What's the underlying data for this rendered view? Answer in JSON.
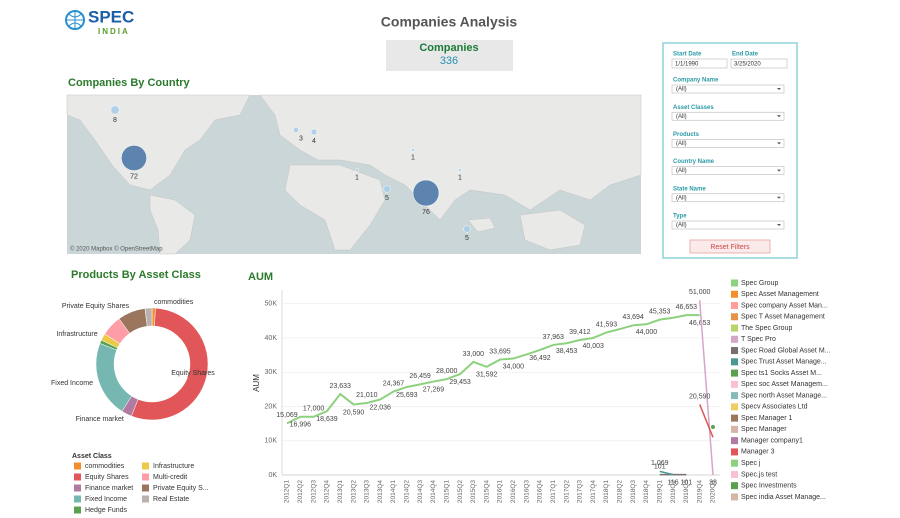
{
  "header": {
    "logo": "SPEC",
    "logo_sub": "INDIA",
    "title": "Companies Analysis",
    "kpi_label": "Companies",
    "kpi_value": 336
  },
  "filters": {
    "start_label": "Start Date",
    "start": "1/1/1990",
    "end_label": "End Date",
    "end": "3/25/2020",
    "dropdowns": [
      {
        "label": "Company Name",
        "value": "(All)"
      },
      {
        "label": "Asset Classes",
        "value": "(All)"
      },
      {
        "label": "Products",
        "value": "(All)"
      },
      {
        "label": "Country Name",
        "value": "(All)"
      },
      {
        "label": "State Name",
        "value": "(All)"
      },
      {
        "label": "Type",
        "value": "(All)"
      }
    ],
    "button": "Reset Filters"
  },
  "chart_data": [
    {
      "type": "map",
      "title": "Companies By Country",
      "values": [
        8,
        72,
        3,
        4,
        1,
        1,
        5,
        76,
        1,
        5
      ],
      "color": "#4e79a7",
      "attribution": "© 2020 Mapbox © OpenStreetMap"
    },
    {
      "type": "pie",
      "title": "Products By Asset Class",
      "legend_title": "Asset Class",
      "categories": [
        "commodities",
        "Equity Shares",
        "Finance market",
        "Fixed Income",
        "Hedge Funds",
        "Infrastructure",
        "Multi-credit",
        "Private Equity S...",
        "Real Estate"
      ],
      "values": [
        1,
        55,
        3,
        22,
        1,
        2,
        6,
        8,
        2
      ],
      "colors": [
        "#f28e2b",
        "#e15759",
        "#b07aa1",
        "#76b7b2",
        "#59a14f",
        "#edc948",
        "#ff9da7",
        "#9c755f",
        "#bab0ac"
      ],
      "slice_labels": [
        "commodities",
        "Equity Shares",
        "Finance market",
        "Fixed Income",
        null,
        "Infrastructure",
        null,
        "Private Equity Shares",
        null
      ]
    },
    {
      "type": "line",
      "title": "AUM",
      "ylabel": "AUM",
      "ylim": [
        0,
        54000
      ],
      "yticks": [
        {
          "value": 0,
          "label": "0K"
        },
        {
          "value": 10000,
          "label": "10K"
        },
        {
          "value": 20000,
          "label": "20K"
        },
        {
          "value": 30000,
          "label": "30K"
        },
        {
          "value": 40000,
          "label": "40K"
        },
        {
          "value": 50000,
          "label": "50K"
        }
      ],
      "categories": [
        "2012Q1",
        "2012Q2",
        "2012Q3",
        "2012Q4",
        "2013Q1",
        "2013Q2",
        "2013Q3",
        "2013Q4",
        "2014Q1",
        "2014Q2",
        "2014Q3",
        "2014Q4",
        "2015Q1",
        "2015Q2",
        "2015Q3",
        "2015Q4",
        "2016Q1",
        "2016Q2",
        "2016Q3",
        "2016Q4",
        "2017Q1",
        "2017Q2",
        "2017Q3",
        "2017Q4",
        "2018Q1",
        "2018Q2",
        "2018Q3",
        "2018Q4",
        "2019Q1",
        "2019Q2",
        "2019Q3",
        "2019Q4",
        "2020Q1"
      ],
      "series": [
        {
          "name": "Spec Group",
          "color": "#8cd17d",
          "values": [
            15069,
            16996,
            17000,
            18639,
            23633,
            20590,
            21010,
            22036,
            24367,
            25693,
            26459,
            27269,
            28000,
            29453,
            33000,
            31592,
            33695,
            34000,
            35200,
            36492,
            37963,
            38453,
            39412,
            40003,
            41593,
            42600,
            43694,
            44000,
            45353,
            45900,
            46653,
            46653,
            null
          ],
          "value_labels": [
            "15,069",
            "16,996",
            "17,000",
            "18,639",
            "23,633",
            "20,590",
            "21,010",
            "22,036",
            "24,367",
            "25,693",
            "26,459",
            "27,269",
            "28,000",
            "29,453",
            "33,000",
            "31,592",
            "33,695",
            "34,000",
            null,
            "36,492",
            "37,963",
            "38,453",
            "39,412",
            "40,003",
            "41,593",
            null,
            "43,694",
            "44,000",
            "45,353",
            null,
            "46,653",
            "46,653",
            null
          ]
        },
        {
          "name": "Spec Asset Management",
          "color": "#f28e2b",
          "x": [],
          "values": []
        },
        {
          "name": "Spec company Asset Man...",
          "color": "#ff9d9a",
          "x": [],
          "values": []
        },
        {
          "name": "Spec T Asset Management",
          "color": "#e49444",
          "x": [],
          "values": []
        },
        {
          "name": "The Spec Group",
          "color": "#b5d56a",
          "x": [],
          "values": []
        },
        {
          "name": "T Spec Pro",
          "color": "#d4a6c8",
          "x": [
            "2019Q4",
            "2020Q1"
          ],
          "values": [
            51000,
            33
          ],
          "value_labels": [
            "51,000",
            "33"
          ]
        },
        {
          "name": "Spec Road Global Asset M...",
          "color": "#79706e",
          "x": [
            "2019Q1",
            "2019Q3"
          ],
          "values": [
            101,
            101
          ],
          "value_labels": [
            "101",
            "101"
          ]
        },
        {
          "name": "Spec Trust Asset Manage...",
          "color": "#499894",
          "x": [
            "2019Q1",
            "2019Q2"
          ],
          "values": [
            1069,
            116
          ],
          "value_labels": [
            "1,069",
            "116"
          ]
        },
        {
          "name": "Spec ts1 Socks Asset M...",
          "color": "#59a14f",
          "x": [
            "2020Q1"
          ],
          "values": [
            14000
          ]
        },
        {
          "name": "Spec soc Asset Managem...",
          "color": "#fabfd2",
          "x": [],
          "values": []
        },
        {
          "name": "Spec north Asset Manage...",
          "color": "#86bcb6",
          "x": [],
          "values": []
        },
        {
          "name": "Specv Associates Ltd",
          "color": "#f1ce63",
          "x": [],
          "values": []
        },
        {
          "name": "Spec Manager 1",
          "color": "#9d7660",
          "x": [],
          "values": []
        },
        {
          "name": "Spec Manager",
          "color": "#d7b5a6",
          "x": [],
          "values": []
        },
        {
          "name": "Manager company1",
          "color": "#b07aa1",
          "x": [],
          "values": []
        },
        {
          "name": "Manager 3",
          "color": "#e15759",
          "x": [
            "2019Q4",
            "2020Q1"
          ],
          "values": [
            20590,
            11000
          ],
          "value_labels": [
            "20,590",
            null
          ]
        },
        {
          "name": "Spec j",
          "color": "#8cd17d",
          "x": [],
          "values": []
        },
        {
          "name": "Spec.js test",
          "color": "#fabfd2",
          "x": [],
          "values": []
        },
        {
          "name": "Spec Investments",
          "color": "#59a14f",
          "x": [],
          "values": []
        },
        {
          "name": "Spec india Asset Manage...",
          "color": "#d7b5a6",
          "x": [],
          "values": []
        }
      ]
    }
  ]
}
